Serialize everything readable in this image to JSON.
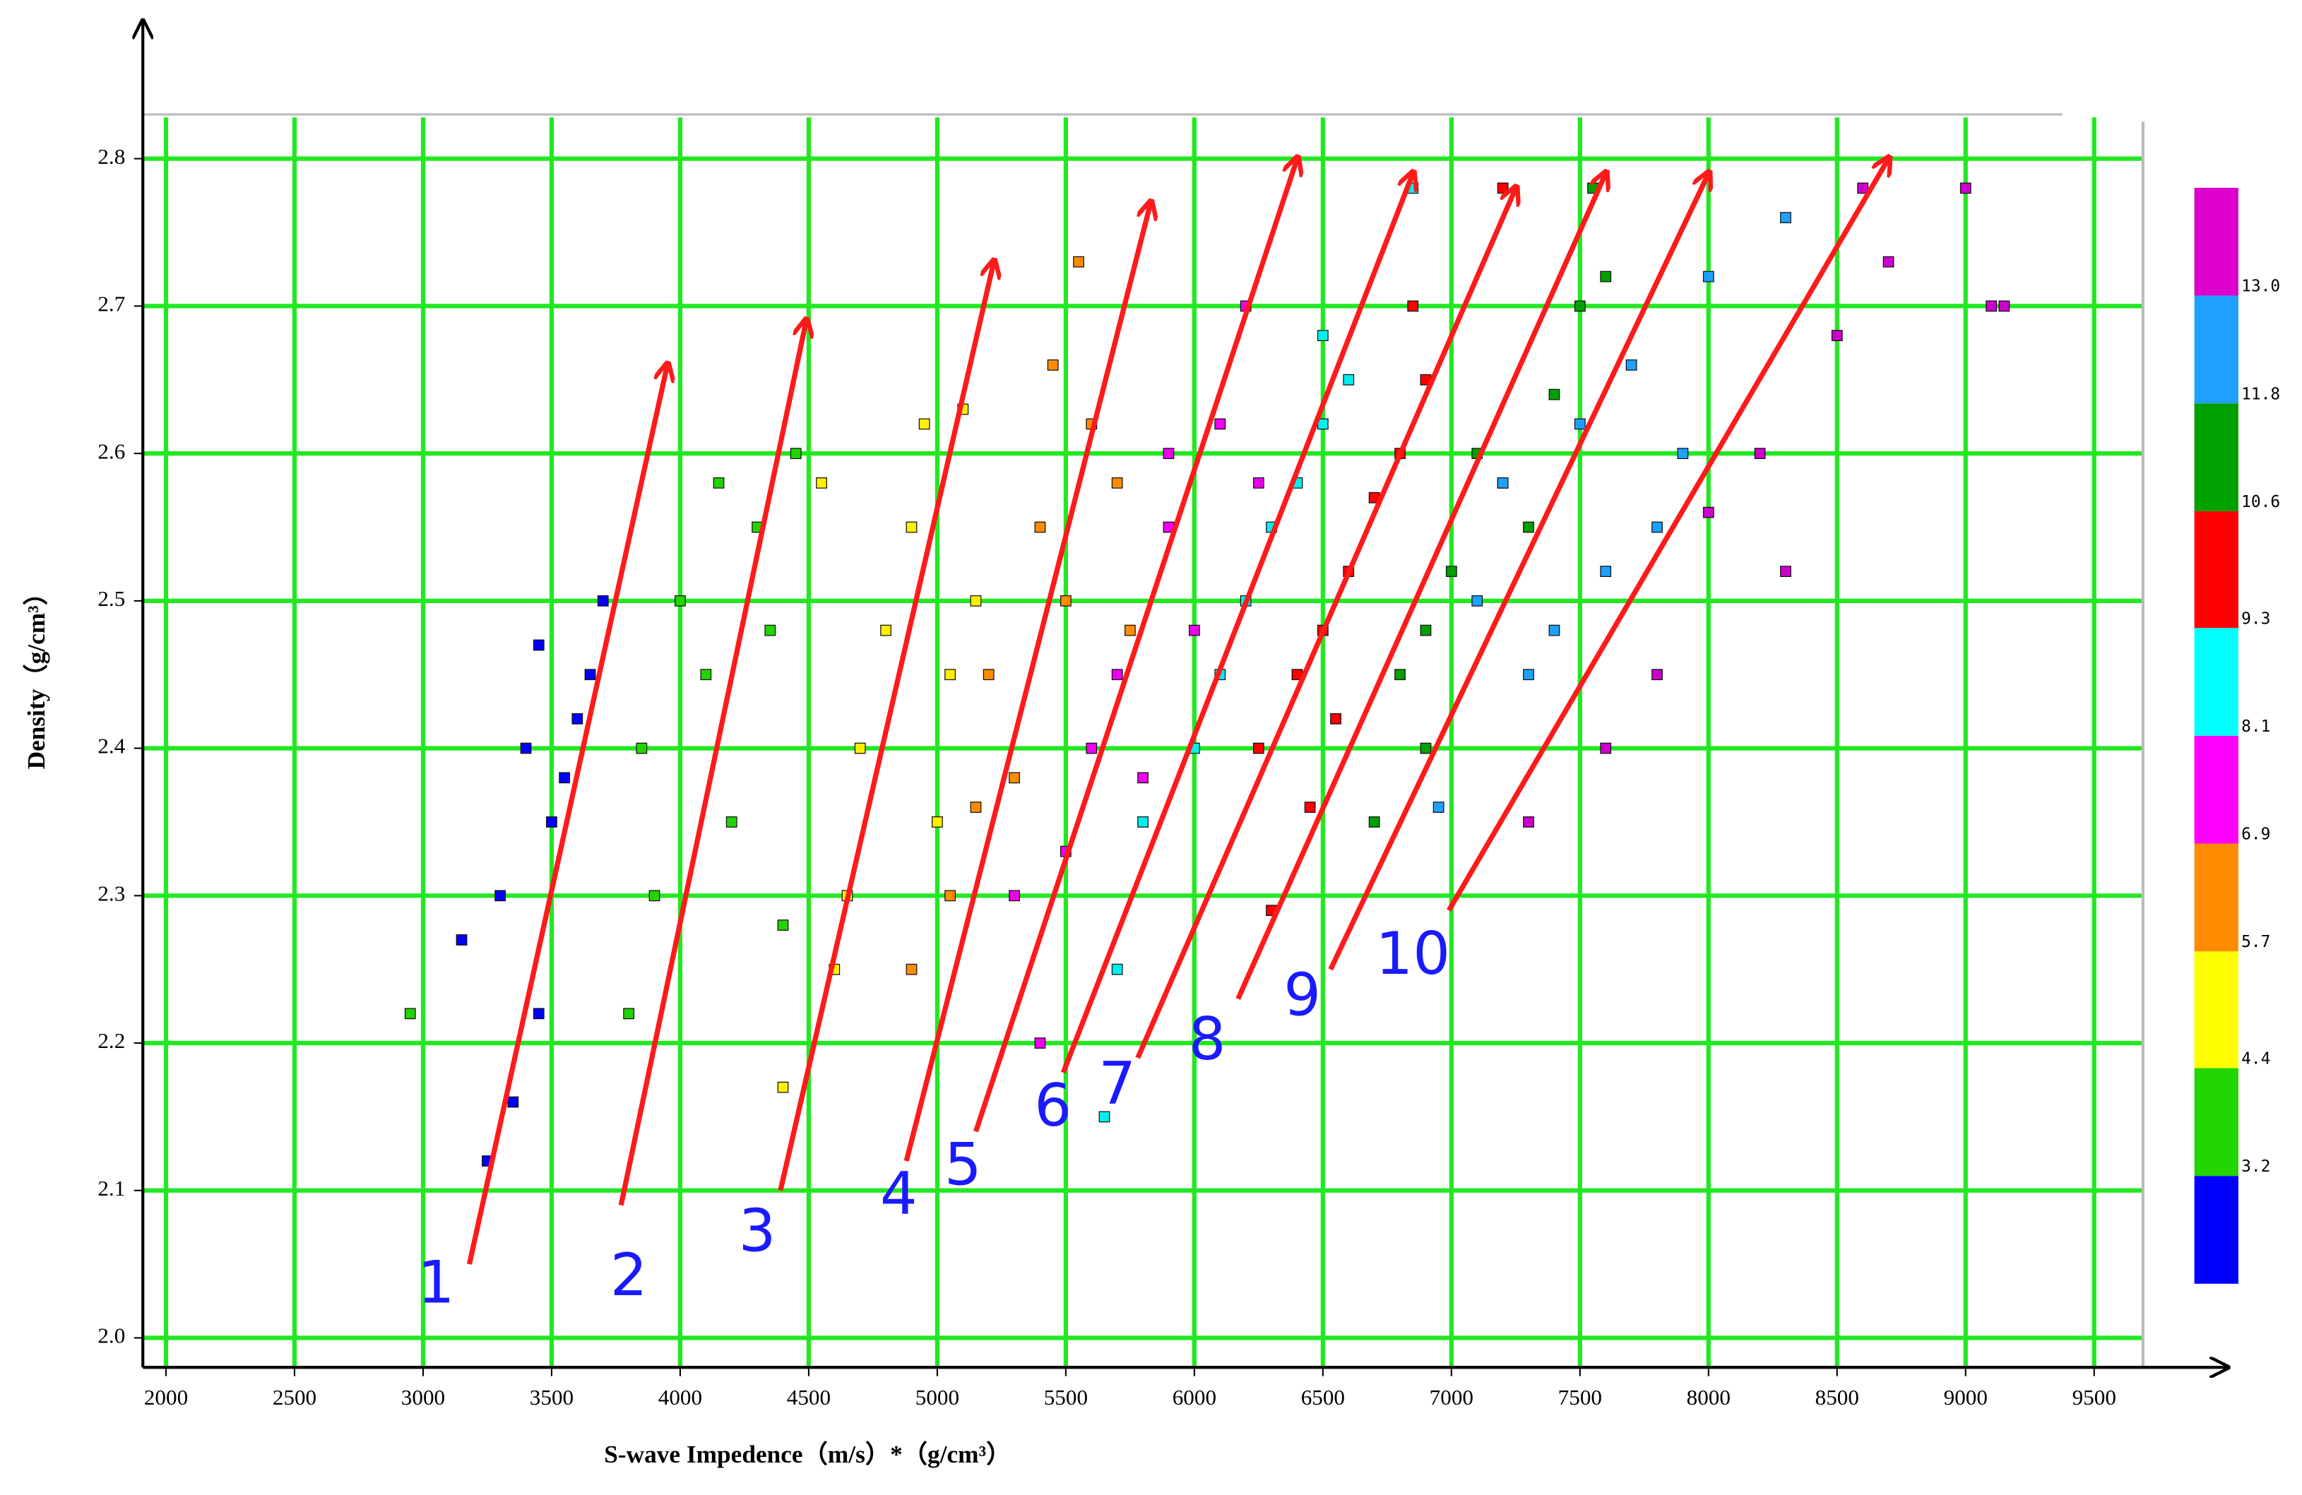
{
  "chart_data": {
    "type": "scatter",
    "x_label": "S-wave Impedence（m/s）*（g/cm³）",
    "y_label": "Density（g/cm³）",
    "xlim": [
      1910,
      9690
    ],
    "ylim": [
      1.98,
      2.83
    ],
    "xticks": [
      2000,
      2500,
      3000,
      3500,
      4000,
      4500,
      5000,
      5500,
      6000,
      6500,
      7000,
      7500,
      8000,
      8500,
      9000,
      9500
    ],
    "yticks": [
      {
        "value": 2.0,
        "label": "2.0"
      },
      2.1,
      2.2,
      2.3,
      2.4,
      2.5,
      2.6,
      2.7,
      2.8
    ],
    "grid": true,
    "grid_color": "#22e822",
    "series": [
      {
        "color": "#0000ff",
        "x": [
          3250,
          3350,
          3450,
          3300,
          3550,
          3650,
          3450,
          3700,
          3400,
          3150,
          3600,
          3500
        ],
        "y": [
          2.12,
          2.16,
          2.22,
          2.3,
          2.38,
          2.45,
          2.47,
          2.5,
          2.4,
          2.27,
          2.42,
          2.35
        ]
      },
      {
        "color": "#22d400",
        "x": [
          3800,
          3900,
          4100,
          4300,
          4000,
          4450,
          4200,
          3850,
          4350,
          4150,
          2950,
          4400
        ],
        "y": [
          2.22,
          2.3,
          2.45,
          2.55,
          2.5,
          2.6,
          2.35,
          2.4,
          2.48,
          2.58,
          2.22,
          2.28
        ]
      },
      {
        "color": "#ffee00",
        "x": [
          4600,
          4700,
          4900,
          5100,
          4800,
          5000,
          4550,
          5150,
          4650,
          4950,
          4400,
          5050
        ],
        "y": [
          2.25,
          2.4,
          2.55,
          2.63,
          2.48,
          2.35,
          2.58,
          2.5,
          2.3,
          2.62,
          2.17,
          2.45
        ]
      },
      {
        "color": "#ff8c00",
        "x": [
          5050,
          5200,
          5400,
          5600,
          5300,
          5500,
          5700,
          5150,
          5450,
          5750,
          5550,
          4900
        ],
        "y": [
          2.3,
          2.45,
          2.55,
          2.62,
          2.38,
          2.5,
          2.58,
          2.36,
          2.66,
          2.48,
          2.73,
          2.25
        ]
      },
      {
        "color": "#ee00ee",
        "x": [
          5500,
          5700,
          5900,
          6100,
          5800,
          6000,
          6250,
          5600,
          6200,
          5400,
          5900,
          5300
        ],
        "y": [
          2.33,
          2.45,
          2.55,
          2.62,
          2.38,
          2.48,
          2.58,
          2.4,
          2.7,
          2.2,
          2.6,
          2.3
        ]
      },
      {
        "color": "#00f0f0",
        "x": [
          5800,
          6000,
          6200,
          6400,
          6600,
          6100,
          6300,
          6500,
          5700,
          6850,
          6500,
          5650
        ],
        "y": [
          2.35,
          2.4,
          2.5,
          2.58,
          2.65,
          2.45,
          2.55,
          2.62,
          2.25,
          2.78,
          2.68,
          2.15
        ]
      },
      {
        "color": "#ff0000",
        "x": [
          6250,
          6400,
          6600,
          6800,
          6500,
          6700,
          6900,
          6300,
          7200,
          6550,
          6850,
          6450
        ],
        "y": [
          2.4,
          2.45,
          2.52,
          2.6,
          2.48,
          2.57,
          2.65,
          2.29,
          2.78,
          2.42,
          2.7,
          2.36
        ]
      },
      {
        "color": "#00a000",
        "x": [
          6800,
          7000,
          7200,
          7400,
          6900,
          7100,
          7500,
          6700,
          7550,
          7300,
          6900,
          7600
        ],
        "y": [
          2.45,
          2.52,
          2.58,
          2.64,
          2.48,
          2.6,
          2.7,
          2.35,
          2.78,
          2.55,
          2.4,
          2.72
        ]
      },
      {
        "color": "#1ea0ff",
        "x": [
          7200,
          7500,
          7800,
          7100,
          7400,
          7700,
          8000,
          8300,
          7300,
          6950,
          7600,
          7900
        ],
        "y": [
          2.58,
          2.62,
          2.55,
          2.5,
          2.48,
          2.66,
          2.72,
          2.76,
          2.45,
          2.36,
          2.52,
          2.6
        ]
      },
      {
        "color": "#cc00cc",
        "x": [
          8200,
          8500,
          8700,
          9000,
          9100,
          8000,
          7600,
          7300,
          8300,
          8600,
          7800,
          9150
        ],
        "y": [
          2.6,
          2.68,
          2.73,
          2.78,
          2.7,
          2.56,
          2.4,
          2.35,
          2.52,
          2.78,
          2.45,
          2.7
        ]
      }
    ],
    "arrow_color": "#ff1a1a",
    "annotation_color": "#1a1aff",
    "annotations": [
      {
        "text": "1",
        "x": 3050,
        "y": 2.035,
        "x0": 3180,
        "y0": 2.05,
        "x1": 3950,
        "y1": 2.66
      },
      {
        "text": "2",
        "x": 3800,
        "y": 2.04,
        "x0": 3770,
        "y0": 2.09,
        "x1": 4490,
        "y1": 2.69
      },
      {
        "text": "3",
        "x": 4300,
        "y": 2.07,
        "x0": 4390,
        "y0": 2.1,
        "x1": 5220,
        "y1": 2.73
      },
      {
        "text": "4",
        "x": 4850,
        "y": 2.095,
        "x0": 4880,
        "y0": 2.12,
        "x1": 5830,
        "y1": 2.77
      },
      {
        "text": "5",
        "x": 5100,
        "y": 2.115,
        "x0": 5150,
        "y0": 2.14,
        "x1": 6400,
        "y1": 2.8
      },
      {
        "text": "6",
        "x": 5450,
        "y": 2.155,
        "x0": 5490,
        "y0": 2.18,
        "x1": 6850,
        "y1": 2.79
      },
      {
        "text": "7",
        "x": 5700,
        "y": 2.17,
        "x0": 5780,
        "y0": 2.19,
        "x1": 7250,
        "y1": 2.78
      },
      {
        "text": "8",
        "x": 6050,
        "y": 2.2,
        "x0": 6170,
        "y0": 2.23,
        "x1": 7600,
        "y1": 2.79
      },
      {
        "text": "9",
        "x": 6420,
        "y": 2.23,
        "x0": 6530,
        "y0": 2.25,
        "x1": 8000,
        "y1": 2.79
      },
      {
        "text": "10",
        "x": 6850,
        "y": 2.258,
        "x0": 6990,
        "y0": 2.29,
        "x1": 8700,
        "y1": 2.8
      }
    ],
    "colorbar": {
      "lim": [
        2.0,
        14.2
      ],
      "colors": [
        "#0000ff",
        "#22d400",
        "#ffff00",
        "#ff8c00",
        "#ff00ff",
        "#00ffff",
        "#ff0000",
        "#00a000",
        "#1ea0ff",
        "#dd00cc"
      ],
      "ticks": [
        3.2,
        4.4,
        5.7,
        6.9,
        8.1,
        9.3,
        10.6,
        11.8,
        {
          "value": 13.0,
          "label": "13.0"
        }
      ]
    }
  }
}
